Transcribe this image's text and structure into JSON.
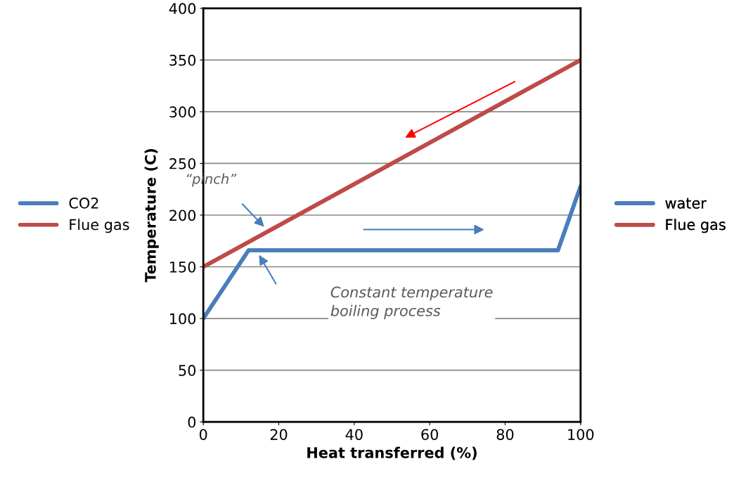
{
  "chart_data": {
    "type": "line",
    "xlabel": "Heat transferred (%)",
    "ylabel": "Temperature (C)",
    "xlim": [
      0,
      100
    ],
    "xticks": [
      0,
      20,
      40,
      60,
      80,
      100
    ],
    "ylim": [
      0,
      400
    ],
    "yticks": [
      0,
      50,
      100,
      150,
      200,
      250,
      300,
      350,
      400
    ],
    "grid": "y",
    "legend": [
      "left",
      "right"
    ],
    "marker": "none",
    "line_style": "solid",
    "series": [
      {
        "name": "CO2",
        "color": "#4a7ebb",
        "x": [
          0,
          12,
          94,
          100
        ],
        "values": [
          100,
          166,
          166,
          228
        ]
      },
      {
        "name": "Flue gas",
        "color": "#be4b48",
        "x": [
          0,
          100
        ],
        "values": [
          150,
          350
        ]
      },
      {
        "name": "water",
        "color": "#4a7ebb",
        "x": [
          0,
          12,
          94,
          100
        ],
        "values": [
          100,
          166,
          166,
          228
        ]
      },
      {
        "name": "Flue gas",
        "color": "#be4b48",
        "x": [
          0,
          100
        ],
        "values": [
          150,
          350
        ]
      }
    ],
    "annotations": [
      "“pinch”",
      "Constant temperature boiling process"
    ]
  }
}
